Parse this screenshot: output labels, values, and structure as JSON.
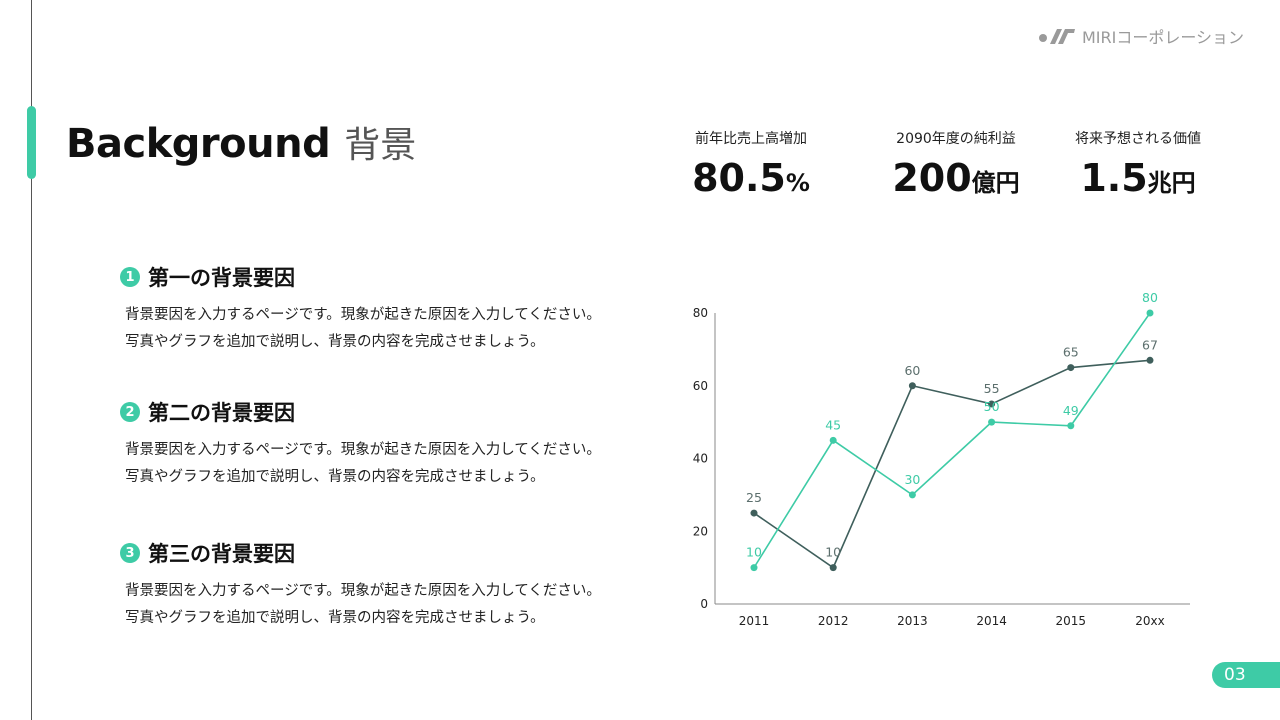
{
  "header": {
    "logo_icon": "miri-logo-icon",
    "company": "MIRIコーポレーション"
  },
  "title": {
    "en": "Background",
    "ja": "背景"
  },
  "kpis": [
    {
      "label": "前年比売上高増加",
      "number": "80.5",
      "unit": "%"
    },
    {
      "label": "2090年度の純利益",
      "number": "200",
      "unit": "億円"
    },
    {
      "label": "将来予想される価値",
      "number": "1.5",
      "unit": "兆円"
    }
  ],
  "factors": [
    {
      "index": "1",
      "heading": "第一の背景要因",
      "line1": "背景要因を入力するページです。現象が起きた原因を入力してください。",
      "line2": "写真やグラフを追加で説明し、背景の内容を完成させましょう。"
    },
    {
      "index": "2",
      "heading": "第二の背景要因",
      "line1": "背景要因を入力するページです。現象が起きた原因を入力してください。",
      "line2": "写真やグラフを追加で説明し、背景の内容を完成させましょう。"
    },
    {
      "index": "3",
      "heading": "第三の背景要因",
      "line1": "背景要因を入力するページです。現象が起きた原因を入力してください。",
      "line2": "写真やグラフを追加で説明し、背景の内容を完成させましょう。"
    }
  ],
  "colors": {
    "accent": "#3ecba6",
    "dark_series": "#3f5f5c",
    "text": "#111111"
  },
  "chart_data": {
    "type": "line",
    "categories": [
      "2011",
      "2012",
      "2013",
      "2014",
      "2015",
      "20xx"
    ],
    "series": [
      {
        "name": "dark",
        "color": "#3f5f5c",
        "values": [
          25,
          10,
          60,
          55,
          65,
          67
        ]
      },
      {
        "name": "green",
        "color": "#3ecba6",
        "values": [
          10,
          45,
          30,
          50,
          49,
          80
        ]
      }
    ],
    "yticks": [
      0,
      20,
      40,
      60,
      80
    ],
    "ylim": [
      0,
      80
    ],
    "title": "",
    "xlabel": "",
    "ylabel": "",
    "grid": false,
    "legend": "none"
  },
  "page_number": "03"
}
